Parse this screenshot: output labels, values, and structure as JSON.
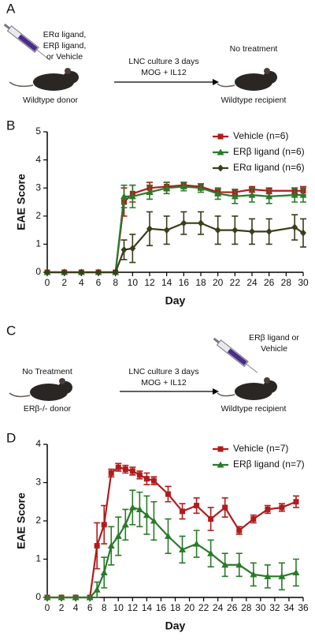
{
  "panel_a": {
    "label": "A",
    "donor_treatment": [
      "ERα ligand,",
      "ERβ ligand,",
      "or Vehicle"
    ],
    "donor": "Wildtype donor",
    "arrow_lines": [
      "LNC culture 3 days",
      "MOG + IL12"
    ],
    "recipient_treatment": "No treatment",
    "recipient": "Wildtype recipient"
  },
  "panel_c": {
    "label": "C",
    "donor_treatment": "No Treatment",
    "donor": "ERβ-/- donor",
    "arrow_lines": [
      "LNC culture 3 days",
      "MOG + IL12"
    ],
    "recipient_treatment": [
      "ERβ ligand or",
      "Vehicle"
    ],
    "recipient": "Wildtype recipient"
  },
  "chart_data": [
    {
      "type": "line",
      "label": "B",
      "x_label": "Day",
      "y_label": "EAE Score",
      "x": [
        0,
        2,
        4,
        6,
        8,
        9,
        10,
        12,
        14,
        16,
        18,
        20,
        22,
        24,
        26,
        29,
        30
      ],
      "xlim": [
        0,
        30
      ],
      "xticks": [
        0,
        2,
        4,
        6,
        8,
        10,
        12,
        14,
        16,
        18,
        20,
        22,
        24,
        26,
        28,
        30
      ],
      "ylim": [
        0,
        5
      ],
      "yticks": [
        0,
        1,
        2,
        3,
        4,
        5
      ],
      "series": [
        {
          "name": "Vehicle (n=6)",
          "color": "#b01c1c",
          "marker": "square",
          "values": [
            0,
            0,
            0,
            0,
            0,
            2.5,
            2.8,
            3.0,
            3.05,
            3.1,
            3.05,
            2.85,
            2.85,
            2.95,
            2.9,
            2.9,
            2.9
          ],
          "errors": [
            0,
            0,
            0,
            0,
            0,
            0.5,
            0.3,
            0.2,
            0.15,
            0.1,
            0.1,
            0.1,
            0.1,
            0.1,
            0.1,
            0.1,
            0.15
          ]
        },
        {
          "name": "ERβ ligand (n=6)",
          "color": "#2a7a2a",
          "marker": "triangle",
          "values": [
            0,
            0,
            0,
            0,
            0,
            2.7,
            2.7,
            2.85,
            3.0,
            3.05,
            3.0,
            2.8,
            2.7,
            2.75,
            2.7,
            2.75,
            2.75
          ],
          "errors": [
            0,
            0,
            0,
            0,
            0,
            0.4,
            0.4,
            0.25,
            0.2,
            0.15,
            0.15,
            0.2,
            0.25,
            0.25,
            0.25,
            0.25,
            0.25
          ]
        },
        {
          "name": "ERα ligand (n=6)",
          "color": "#3b3d1c",
          "marker": "diamond",
          "values": [
            0,
            0,
            0,
            0,
            0,
            0.8,
            0.85,
            1.55,
            1.5,
            1.75,
            1.75,
            1.5,
            1.5,
            1.45,
            1.45,
            1.6,
            1.4
          ],
          "errors": [
            0,
            0,
            0,
            0,
            0,
            0.35,
            0.5,
            0.6,
            0.5,
            0.4,
            0.4,
            0.5,
            0.5,
            0.45,
            0.45,
            0.45,
            0.5
          ]
        }
      ]
    },
    {
      "type": "line",
      "label": "D",
      "x_label": "Day",
      "y_label": "EAE Score",
      "x": [
        0,
        2,
        4,
        6,
        7,
        8,
        9,
        10,
        11,
        12,
        13,
        14,
        15,
        17,
        19,
        21,
        23,
        25,
        27,
        29,
        31,
        33,
        35
      ],
      "xlim": [
        0,
        36
      ],
      "xticks": [
        0,
        2,
        4,
        6,
        8,
        10,
        12,
        14,
        16,
        18,
        20,
        22,
        24,
        26,
        28,
        30,
        32,
        34,
        36
      ],
      "ylim": [
        0,
        4
      ],
      "yticks": [
        0,
        1,
        2,
        3,
        4
      ],
      "series": [
        {
          "name": "Vehicle (n=7)",
          "color": "#b01c1c",
          "marker": "square",
          "values": [
            0,
            0,
            0,
            0,
            1.35,
            1.9,
            3.25,
            3.4,
            3.35,
            3.3,
            3.2,
            3.1,
            3.05,
            2.7,
            2.25,
            2.4,
            2.05,
            2.35,
            1.75,
            2.05,
            2.3,
            2.35,
            2.5
          ],
          "errors": [
            0,
            0,
            0,
            0,
            0.6,
            0.5,
            0.1,
            0.1,
            0.1,
            0.1,
            0.1,
            0.15,
            0.1,
            0.2,
            0.2,
            0.2,
            0.3,
            0.25,
            0.1,
            0.1,
            0.1,
            0.1,
            0.15
          ]
        },
        {
          "name": "ERβ ligand (n=7)",
          "color": "#2a7a2a",
          "marker": "triangle",
          "values": [
            0,
            0,
            0,
            0,
            0.2,
            0.65,
            1.35,
            1.6,
            1.9,
            2.35,
            2.3,
            2.15,
            2.0,
            1.6,
            1.25,
            1.4,
            1.15,
            0.85,
            0.85,
            0.6,
            0.55,
            0.55,
            0.65
          ],
          "errors": [
            0,
            0,
            0,
            0,
            0.2,
            0.4,
            0.5,
            0.5,
            0.4,
            0.45,
            0.45,
            0.5,
            0.5,
            0.45,
            0.35,
            0.35,
            0.35,
            0.3,
            0.3,
            0.3,
            0.3,
            0.35,
            0.35
          ]
        }
      ]
    }
  ]
}
